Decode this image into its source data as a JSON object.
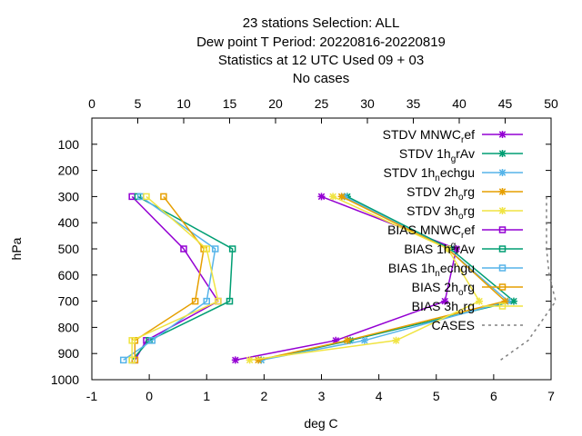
{
  "chart_data": {
    "type": "line",
    "title_lines": [
      "23 stations Selection: ALL",
      "Dew point T  Period: 20220816-20220819",
      "Statistics at 12 UTC  Used  09 + 03",
      "No cases"
    ],
    "xlabel": "deg C",
    "ylabel": "hPa",
    "xlim": [
      -1,
      7
    ],
    "x2lim": [
      0,
      50
    ],
    "ylim": [
      1000,
      0
    ],
    "x_ticks": [
      "-1",
      "0",
      "1",
      "2",
      "3",
      "4",
      "5",
      "6",
      "7"
    ],
    "x2_ticks": [
      "0",
      "5",
      "10",
      "15",
      "20",
      "25",
      "30",
      "35",
      "40",
      "45",
      "50"
    ],
    "y_ticks": [
      "100",
      "200",
      "300",
      "400",
      "500",
      "600",
      "700",
      "800",
      "900",
      "1000"
    ],
    "grid": false,
    "legend_position": "top-right",
    "series": [
      {
        "name": "STDV MNWC_ref",
        "legend": {
          "main": "STDV MNWC",
          "sub": "r",
          "tail": "ef",
          "sub_pos": "low"
        },
        "color": "#9400d3",
        "marker": "star",
        "points": [
          {
            "p": 300,
            "v": 3.0
          },
          {
            "p": 500,
            "v": 5.35
          },
          {
            "p": 700,
            "v": 5.15
          },
          {
            "p": 850,
            "v": 3.25
          },
          {
            "p": 925,
            "v": 1.5
          }
        ]
      },
      {
        "name": "STDV 1h_grAv",
        "legend": {
          "main": "STDV 1h",
          "sub": "g",
          "tail": "rAv",
          "sub_pos": "low"
        },
        "color": "#009e73",
        "marker": "star",
        "points": [
          {
            "p": 300,
            "v": 3.45
          },
          {
            "p": 500,
            "v": 5.25
          },
          {
            "p": 700,
            "v": 6.35
          },
          {
            "p": 850,
            "v": 3.5
          },
          {
            "p": 925,
            "v": 1.95
          }
        ]
      },
      {
        "name": "STDV 1h_nechgu",
        "legend": {
          "main": "STDV 1h",
          "sub": "n",
          "tail": "echgu",
          "sub_pos": "low"
        },
        "color": "#56b4e9",
        "marker": "star",
        "points": [
          {
            "p": 300,
            "v": 3.4
          },
          {
            "p": 500,
            "v": 5.2
          },
          {
            "p": 700,
            "v": 6.25
          },
          {
            "p": 850,
            "v": 3.75
          },
          {
            "p": 925,
            "v": 1.95
          }
        ]
      },
      {
        "name": "STDV 2h_org",
        "legend": {
          "main": "STDV 2h",
          "sub": "o",
          "tail": "rg",
          "sub_pos": "low"
        },
        "color": "#e69f00",
        "marker": "star",
        "points": [
          {
            "p": 300,
            "v": 3.35
          },
          {
            "p": 500,
            "v": 5.2
          },
          {
            "p": 700,
            "v": 6.2
          },
          {
            "p": 850,
            "v": 3.45
          },
          {
            "p": 925,
            "v": 1.9
          }
        ]
      },
      {
        "name": "STDV 3h_org",
        "legend": {
          "main": "STDV 3h",
          "sub": "o",
          "tail": "rg",
          "sub_pos": "low"
        },
        "color": "#f0e442",
        "marker": "star",
        "points": [
          {
            "p": 300,
            "v": 3.2
          },
          {
            "p": 500,
            "v": 5.2
          },
          {
            "p": 700,
            "v": 5.75
          },
          {
            "p": 850,
            "v": 4.3
          },
          {
            "p": 925,
            "v": 1.75
          }
        ]
      },
      {
        "name": "BIAS MNWC_ref",
        "legend": {
          "main": "BIAS MNWC",
          "sub": "r",
          "tail": "ef",
          "sub_pos": "low"
        },
        "color": "#9400d3",
        "marker": "square",
        "points": [
          {
            "p": 300,
            "v": -0.3
          },
          {
            "p": 500,
            "v": 0.6
          },
          {
            "p": 700,
            "v": 1.2
          },
          {
            "p": 850,
            "v": -0.05
          },
          {
            "p": 925,
            "v": -0.25
          }
        ]
      },
      {
        "name": "BIAS 1h_grAv",
        "legend": {
          "main": "BIAS 1h",
          "sub": "g",
          "tail": "rAv",
          "sub_pos": "high"
        },
        "color": "#009e73",
        "marker": "square",
        "points": [
          {
            "p": 300,
            "v": -0.2
          },
          {
            "p": 500,
            "v": 1.45
          },
          {
            "p": 700,
            "v": 1.4
          },
          {
            "p": 850,
            "v": 0.0
          },
          {
            "p": 925,
            "v": -0.3
          }
        ]
      },
      {
        "name": "BIAS 1h_nechgu",
        "legend": {
          "main": "BIAS 1h",
          "sub": "n",
          "tail": "echgu",
          "sub_pos": "low"
        },
        "color": "#56b4e9",
        "marker": "square",
        "points": [
          {
            "p": 300,
            "v": -0.15
          },
          {
            "p": 500,
            "v": 1.15
          },
          {
            "p": 700,
            "v": 1.0
          },
          {
            "p": 850,
            "v": 0.05
          },
          {
            "p": 925,
            "v": -0.45
          }
        ]
      },
      {
        "name": "BIAS 2h_org",
        "legend": {
          "main": "BIAS 2h",
          "sub": "o",
          "tail": "rg",
          "sub_pos": "low"
        },
        "color": "#e69f00",
        "marker": "square",
        "points": [
          {
            "p": 300,
            "v": 0.25
          },
          {
            "p": 500,
            "v": 0.95
          },
          {
            "p": 700,
            "v": 0.8
          },
          {
            "p": 850,
            "v": -0.25
          },
          {
            "p": 925,
            "v": -0.25
          }
        ]
      },
      {
        "name": "BIAS 3h_org",
        "legend": {
          "main": "BIAS 3h",
          "sub": "o",
          "tail": "rg",
          "sub_pos": "low"
        },
        "color": "#f0e442",
        "marker": "square",
        "points": [
          {
            "p": 300,
            "v": -0.05
          },
          {
            "p": 500,
            "v": 1.0
          },
          {
            "p": 700,
            "v": 1.2
          },
          {
            "p": 850,
            "v": -0.3
          },
          {
            "p": 925,
            "v": -0.3
          }
        ]
      },
      {
        "name": "CASES",
        "legend": {
          "main": "CASES",
          "sub": "",
          "tail": "",
          "sub_pos": "low"
        },
        "color": "#808080",
        "marker": "none",
        "dashed": true,
        "axis": "x2",
        "points": [
          {
            "p": 300,
            "v": 49.5
          },
          {
            "p": 500,
            "v": 49.5
          },
          {
            "p": 600,
            "v": 49.8
          },
          {
            "p": 700,
            "v": 50.5
          },
          {
            "p": 800,
            "v": 48.5
          },
          {
            "p": 850,
            "v": 47.5
          },
          {
            "p": 925,
            "v": 44.5
          }
        ]
      }
    ]
  }
}
